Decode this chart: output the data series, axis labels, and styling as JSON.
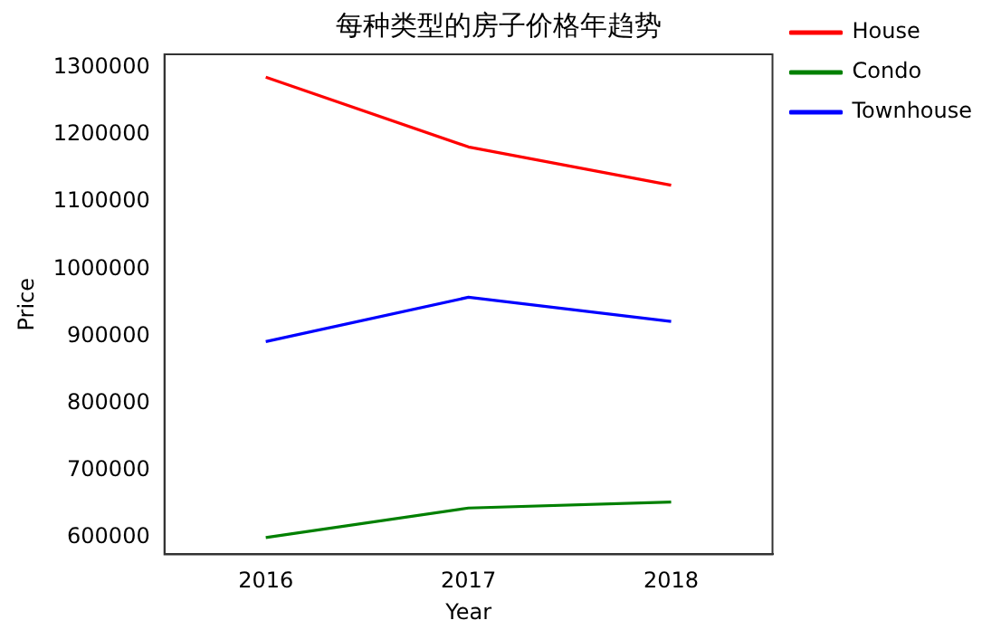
{
  "chart_data": {
    "type": "line",
    "title": "每种类型的房子价格年趋势",
    "xlabel": "Year",
    "ylabel": "Price",
    "categories": [
      "2016",
      "2017",
      "2018"
    ],
    "series": [
      {
        "name": "House",
        "color": "#ff0000",
        "values": [
          1286000,
          1182000,
          1125000
        ]
      },
      {
        "name": "Condo",
        "color": "#008000",
        "values": [
          600000,
          644000,
          653000
        ]
      },
      {
        "name": "Townhouse",
        "color": "#0000ff",
        "values": [
          892000,
          958000,
          922000
        ]
      }
    ],
    "ylim": [
      575000,
      1320000
    ],
    "yticks": [
      600000,
      700000,
      800000,
      900000,
      1000000,
      1100000,
      1200000,
      1300000
    ],
    "grid": false,
    "legend": "top right",
    "marker": "none",
    "line_style": "solid"
  }
}
